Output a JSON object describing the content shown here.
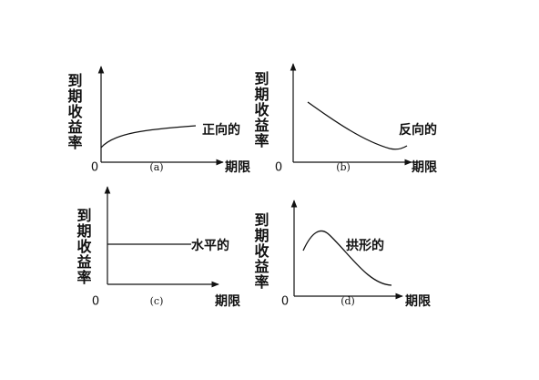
{
  "panels": [
    {
      "y_label": "到期收益率",
      "x_label": "期限",
      "origin": "0",
      "caption": "(a)",
      "curve_label": "正向的"
    },
    {
      "y_label": "到期收益率",
      "x_label": "期限",
      "origin": "0",
      "caption": "(b)",
      "curve_label": "反向的"
    },
    {
      "y_label": "到期收益率",
      "x_label": "期限",
      "origin": "0",
      "caption": "(c)",
      "curve_label": "水平的"
    },
    {
      "y_label": "到期收益率",
      "x_label": "期限",
      "origin": "0",
      "caption": "(d)",
      "curve_label": "拱形的"
    }
  ]
}
